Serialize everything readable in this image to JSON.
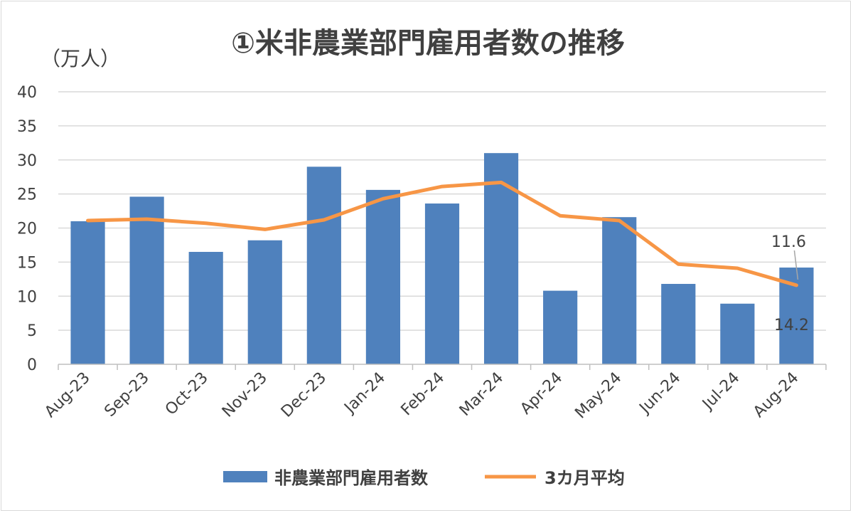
{
  "chart_data": {
    "type": "bar",
    "title": "①米非農業部門雇用者数の推移",
    "unit_label": "（万人）",
    "categories": [
      "Aug-23",
      "Sep-23",
      "Oct-23",
      "Nov-23",
      "Dec-23",
      "Jan-24",
      "Feb-24",
      "Mar-24",
      "Apr-24",
      "May-24",
      "Jun-24",
      "Jul-24",
      "Aug-24"
    ],
    "series": [
      {
        "name": "非農業部門雇用者数",
        "type": "bar",
        "color": "#4f81bd",
        "values": [
          21.0,
          24.6,
          16.5,
          18.2,
          29.0,
          25.6,
          23.6,
          31.0,
          10.8,
          21.6,
          11.8,
          8.9,
          14.2
        ]
      },
      {
        "name": "3カ月平均",
        "type": "line",
        "color": "#f79646",
        "values": [
          21.1,
          21.3,
          20.7,
          19.8,
          21.2,
          24.3,
          26.1,
          26.7,
          21.8,
          21.1,
          14.7,
          14.1,
          11.6
        ]
      }
    ],
    "data_labels": [
      {
        "series": "3カ月平均",
        "category": "Aug-24",
        "text": "11.6"
      },
      {
        "series": "非農業部門雇用者数",
        "category": "Aug-24",
        "text": "14.2"
      }
    ],
    "ylim": [
      0,
      40
    ],
    "yticks": [
      0,
      5,
      10,
      15,
      20,
      25,
      30,
      35,
      40
    ],
    "grid": true,
    "legend_position": "bottom"
  }
}
